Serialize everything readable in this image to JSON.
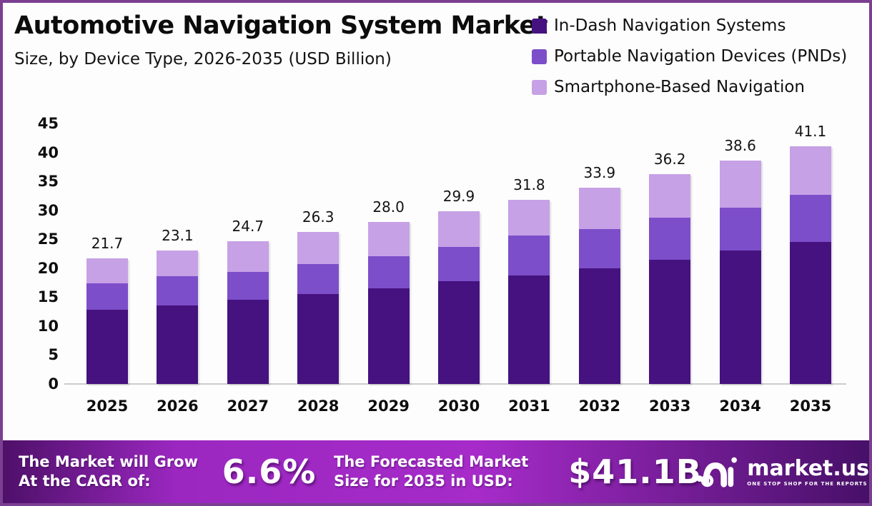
{
  "page": {
    "title": "Automotive Navigation System Market",
    "subtitle": "Size, by Device Type, 2026-2035 (USD Billion)"
  },
  "colors": {
    "page_border": "#7b3f92",
    "background": "#fdfdfd",
    "axis_line": "#cccccc",
    "title_text": "#0c0c0c",
    "banner_text": "#ffffff",
    "banner_gradient": [
      "#4e1069",
      "#9b27c0",
      "#a62bc9",
      "#471068"
    ]
  },
  "chart_data": {
    "type": "bar",
    "stacked": true,
    "title": "Automotive Navigation System Market Size, by Device Type, 2026-2035 (USD Billion)",
    "categories": [
      "2025",
      "2026",
      "2027",
      "2028",
      "2029",
      "2030",
      "2031",
      "2032",
      "2033",
      "2034",
      "2035"
    ],
    "series": [
      {
        "name": "In-Dash Navigation Systems",
        "color": "#45127f",
        "values": [
          12.8,
          13.6,
          14.6,
          15.5,
          16.5,
          17.7,
          18.8,
          20.0,
          21.5,
          23.0,
          24.5
        ]
      },
      {
        "name": "Portable Navigation Devices (PNDs)",
        "color": "#7d4ec9",
        "values": [
          4.6,
          5.0,
          4.8,
          5.2,
          5.6,
          6.0,
          6.8,
          6.8,
          7.2,
          7.5,
          8.2
        ]
      },
      {
        "name": "Smartphone-Based Navigation",
        "color": "#c6a1e6",
        "values": [
          4.3,
          4.5,
          5.3,
          5.6,
          5.9,
          6.2,
          6.2,
          7.1,
          7.5,
          8.1,
          8.4
        ]
      }
    ],
    "totals": [
      21.7,
      23.1,
      24.7,
      26.3,
      28.0,
      29.9,
      31.8,
      33.9,
      36.2,
      38.6,
      41.1
    ],
    "totals_labels": [
      "21.7",
      "23.1",
      "24.7",
      "26.3",
      "28.0",
      "29.9",
      "31.8",
      "33.9",
      "36.2",
      "38.6",
      "41.1"
    ],
    "ylabel": "",
    "xlabel": "",
    "ylim": [
      0,
      45
    ],
    "yticks": [
      0,
      5,
      10,
      15,
      20,
      25,
      30,
      35,
      40,
      45
    ],
    "grid": false,
    "legend_position": "top-right"
  },
  "banner": {
    "cagr_line1": "The Market will Grow",
    "cagr_line2": "At the CAGR of:",
    "cagr_value": "6.6%",
    "forecast_line1": "The Forecasted Market",
    "forecast_line2": "Size for 2035 in USD:",
    "forecast_value": "$41.1B",
    "logo_text": "market.us",
    "logo_tagline": "ONE STOP SHOP FOR THE REPORTS"
  }
}
